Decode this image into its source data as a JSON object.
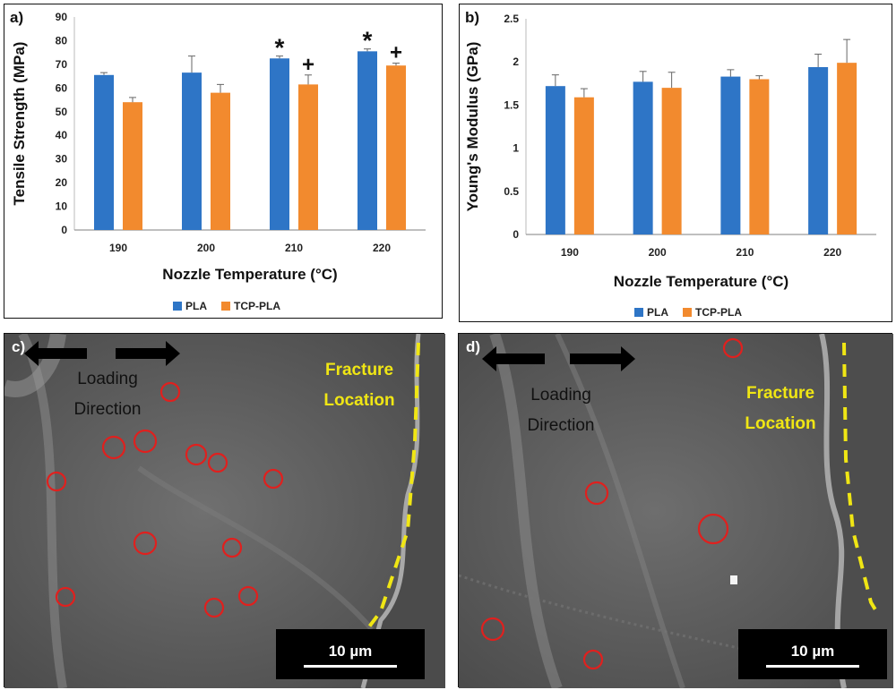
{
  "chart_data": [
    {
      "panel": "a)",
      "type": "bar",
      "categories": [
        "190",
        "200",
        "210",
        "220"
      ],
      "series": [
        {
          "name": "PLA",
          "values": [
            65.5,
            66.5,
            72.5,
            75.5
          ],
          "errors": [
            1.0,
            7.0,
            1.0,
            1.0
          ],
          "color": "#2e75c6"
        },
        {
          "name": "TCP-PLA",
          "values": [
            54,
            58,
            61.5,
            69.5
          ],
          "errors": [
            2.0,
            3.5,
            4.0,
            1.0
          ],
          "color": "#f28a2e"
        }
      ],
      "xlabel": "Nozzle Temperature (°C)",
      "ylabel": "Tensile Strength (MPa)",
      "ylim": [
        0,
        90
      ],
      "yticks": [
        "0",
        "10",
        "20",
        "30",
        "40",
        "50",
        "60",
        "70",
        "80",
        "90"
      ],
      "annotations": [
        {
          "category": "210",
          "series": "PLA",
          "text": "*"
        },
        {
          "category": "210",
          "series": "TCP-PLA",
          "text": "+"
        },
        {
          "category": "220",
          "series": "PLA",
          "text": "*"
        },
        {
          "category": "220",
          "series": "TCP-PLA",
          "text": "+"
        }
      ],
      "grid": false,
      "legend": "bottom"
    },
    {
      "panel": "b)",
      "type": "bar",
      "categories": [
        "190",
        "200",
        "210",
        "220"
      ],
      "series": [
        {
          "name": "PLA",
          "values": [
            1.72,
            1.77,
            1.83,
            1.94
          ],
          "errors": [
            0.13,
            0.12,
            0.08,
            0.15
          ],
          "color": "#2e75c6"
        },
        {
          "name": "TCP-PLA",
          "values": [
            1.59,
            1.7,
            1.8,
            1.99
          ],
          "errors": [
            0.1,
            0.18,
            0.04,
            0.27
          ],
          "color": "#f28a2e"
        }
      ],
      "xlabel": "Nozzle Temperature (°C)",
      "ylabel": "Young's Modulus (GPa)",
      "ylim": [
        0,
        2.5
      ],
      "yticks": [
        "0",
        "0.5",
        "1",
        "1.5",
        "2",
        "2.5"
      ],
      "grid": false,
      "legend": "bottom"
    }
  ],
  "images": {
    "c": {
      "panel_label": "c)",
      "loading_label_line1": "Loading",
      "loading_label_line2": "Direction",
      "fracture_label_line1": "Fracture",
      "fracture_label_line2": "Location",
      "scale_bar": "10 µm"
    },
    "d": {
      "panel_label": "d)",
      "loading_label_line1": "Loading",
      "loading_label_line2": "Direction",
      "fracture_label_line1": "Fracture",
      "fracture_label_line2": "Location",
      "scale_bar": "10 µm"
    }
  },
  "colors": {
    "pla": "#2e75c6",
    "tcp_pla": "#f28a2e",
    "annotation_yellow": "#f0e614",
    "pore_circle": "#e0201e"
  }
}
